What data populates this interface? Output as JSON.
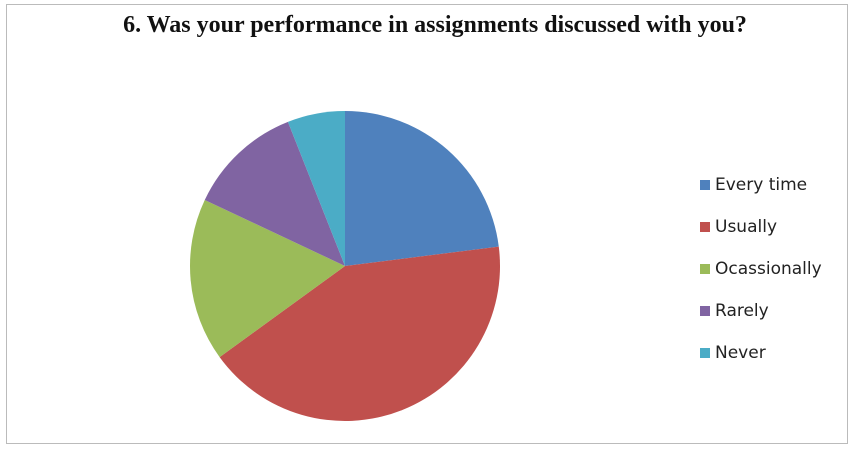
{
  "chart_data": {
    "type": "pie",
    "title": "6. Was your performance in assignments discussed with you?",
    "categories": [
      "Every time",
      "Usually",
      "Ocassionally",
      "Rarely",
      "Never"
    ],
    "values": [
      23,
      42,
      17,
      12,
      6
    ],
    "colors": [
      "#4f81bd",
      "#c0504d",
      "#9bbb59",
      "#8064a2",
      "#4bacc6"
    ],
    "legend": "right"
  }
}
